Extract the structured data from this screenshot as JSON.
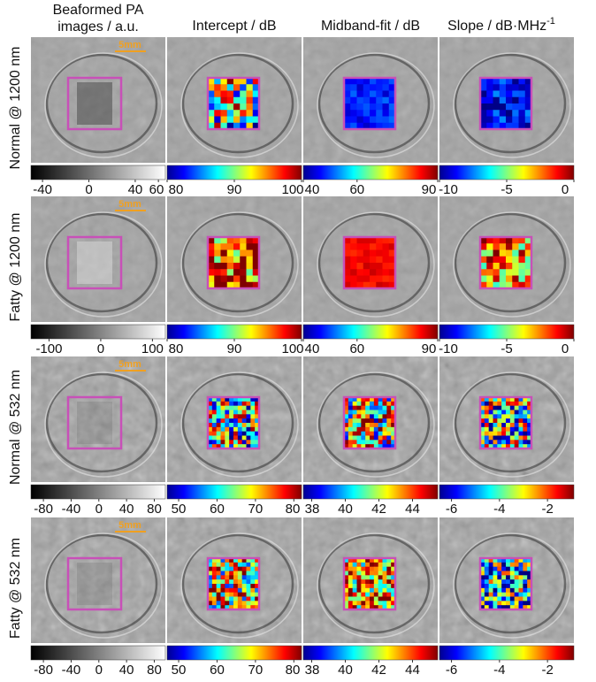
{
  "headers": [
    {
      "lines": [
        "Beaformed PA",
        "images / a.u."
      ]
    },
    {
      "lines": [
        "Intercept / dB"
      ]
    },
    {
      "lines": [
        "Midband-fit / dB"
      ]
    },
    {
      "lines": [
        "Slope / dB·MHz"
      ],
      "sup": "-1"
    }
  ],
  "scale_bar": "5mm",
  "rows": [
    {
      "label": "Normal @ 1200 nm",
      "colorbars": [
        {
          "range": [
            -50,
            66
          ],
          "ticks": [
            -40,
            0,
            40,
            60
          ]
        },
        {
          "range": [
            80,
            100
          ],
          "ticks": [
            80,
            90,
            100
          ]
        },
        {
          "range": [
            40,
            90
          ],
          "ticks": [
            40,
            60,
            90
          ]
        },
        {
          "range": [
            -10,
            0
          ],
          "ticks": [
            -10,
            -5,
            0
          ]
        }
      ]
    },
    {
      "label": "Fatty @ 1200 nm",
      "colorbars": [
        {
          "range": [
            -135,
            125
          ],
          "ticks": [
            -100,
            0,
            100
          ]
        },
        {
          "range": [
            80,
            100
          ],
          "ticks": [
            80,
            90,
            100
          ]
        },
        {
          "range": [
            40,
            90
          ],
          "ticks": [
            40,
            60,
            90
          ]
        },
        {
          "range": [
            -10,
            0
          ],
          "ticks": [
            -10,
            -5,
            0
          ]
        }
      ]
    },
    {
      "label": "Normal @ 532 nm",
      "colorbars": [
        {
          "range": [
            -98,
            96
          ],
          "ticks": [
            -80,
            -40,
            0,
            40,
            80
          ]
        },
        {
          "range": [
            47,
            82
          ],
          "ticks": [
            50,
            60,
            70,
            80
          ]
        },
        {
          "range": [
            37.5,
            45.5
          ],
          "ticks": [
            38,
            40,
            42,
            44
          ]
        },
        {
          "range": [
            -6.5,
            -0.9
          ],
          "ticks": [
            -6,
            -4,
            -2
          ]
        }
      ]
    },
    {
      "label": "Fatty @ 532 nm",
      "colorbars": [
        {
          "range": [
            -98,
            96
          ],
          "ticks": [
            -80,
            -40,
            0,
            40,
            80
          ]
        },
        {
          "range": [
            47,
            82
          ],
          "ticks": [
            50,
            60,
            70,
            80
          ]
        },
        {
          "range": [
            37.5,
            45.5
          ],
          "ticks": [
            38,
            40,
            42,
            44
          ]
        },
        {
          "range": [
            -6.5,
            -0.9
          ],
          "ticks": [
            -6,
            -4,
            -2
          ]
        }
      ]
    }
  ]
}
